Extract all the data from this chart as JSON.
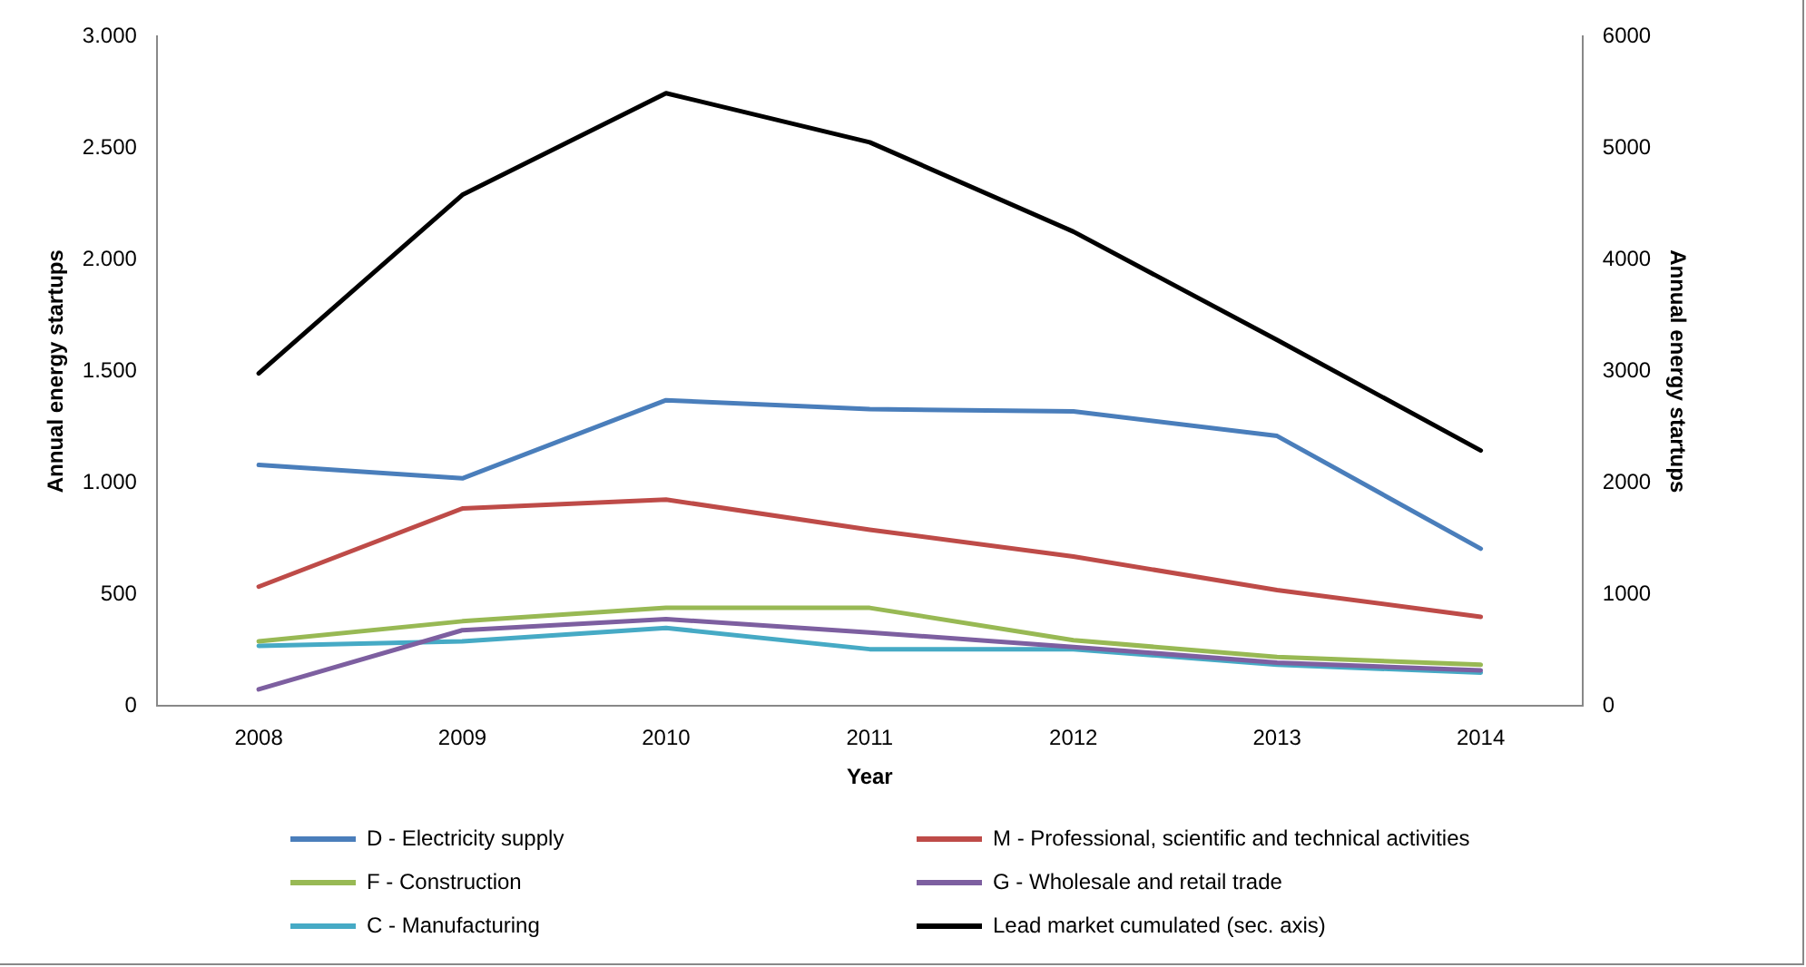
{
  "chart_data": {
    "type": "line",
    "xlabel": "Year",
    "ylabel": "Annual energy startups",
    "y2label": "Annual energy startups",
    "categories": [
      "2008",
      "2009",
      "2010",
      "2011",
      "2012",
      "2013",
      "2014"
    ],
    "series": [
      {
        "name": "D - Electricity supply",
        "color": "#4a7ebb",
        "values": [
          1080,
          1020,
          1370,
          1330,
          1320,
          1210,
          705
        ]
      },
      {
        "name": "M - Professional, scientific and technical activities",
        "color": "#be4b48",
        "values": [
          535,
          885,
          925,
          790,
          670,
          520,
          400
        ]
      },
      {
        "name": "F - Construction",
        "color": "#98b954",
        "values": [
          290,
          380,
          440,
          440,
          295,
          220,
          185
        ]
      },
      {
        "name": "G - Wholesale and retail trade",
        "color": "#7d5fa0",
        "values": [
          75,
          340,
          390,
          330,
          265,
          195,
          160
        ]
      },
      {
        "name": "C - Manufacturing",
        "color": "#46aac5",
        "values": [
          270,
          290,
          350,
          255,
          255,
          185,
          150
        ]
      },
      {
        "name": "Lead market cumulated (sec. axis)",
        "color": "#000000",
        "axis": "y2",
        "values": [
          2980,
          4580,
          5490,
          5050,
          4250,
          3280,
          2290
        ]
      }
    ],
    "ylim": [
      0,
      3000
    ],
    "yticks": [
      {
        "value": 0,
        "label": "0"
      },
      {
        "value": 500,
        "label": "500"
      },
      {
        "value": 1000,
        "label": "1.000"
      },
      {
        "value": 1500,
        "label": "1.500"
      },
      {
        "value": 2000,
        "label": "2.000"
      },
      {
        "value": 2500,
        "label": "2.500"
      },
      {
        "value": 3000,
        "label": "3.000"
      }
    ],
    "y2lim": [
      0,
      6000
    ],
    "y2ticks": [
      0,
      1000,
      2000,
      3000,
      4000,
      5000,
      6000
    ],
    "grid": false,
    "legend": "bottom",
    "marker": "none",
    "line_style": "solid"
  }
}
